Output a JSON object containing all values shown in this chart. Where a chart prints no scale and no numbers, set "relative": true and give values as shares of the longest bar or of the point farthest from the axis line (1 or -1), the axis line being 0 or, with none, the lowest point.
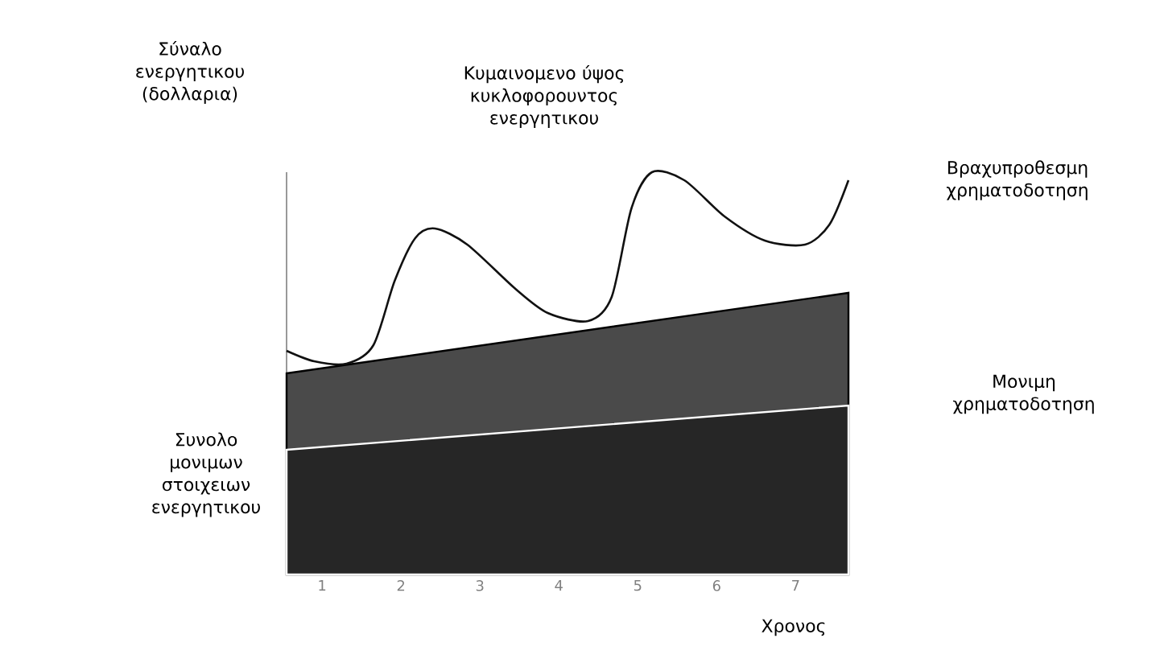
{
  "chart_data": {
    "type": "area",
    "relative": true,
    "ylabel": "Σύναλο ενεργητικου (δολλαρια)",
    "xlabel": "Χρονος",
    "xlim": [
      0.55,
      7.67
    ],
    "xticks": [
      1,
      2,
      3,
      4,
      5,
      6,
      7
    ],
    "annotations": [
      "Βραχυπροθεσμη χρηματοδοτηση",
      "Μονιμη χρηματοδοτηση"
    ],
    "series": [
      {
        "color": "#4a4a4a",
        "x": [
          0.55,
          7.67
        ],
        "values": [
          0.5,
          0.7
        ]
      },
      {
        "name": "Συνολο μονιμων στοιχειων ενεργητικου",
        "color": "#262626",
        "x": [
          0.55,
          7.67
        ],
        "values": [
          0.31,
          0.42
        ]
      },
      {
        "type": "line",
        "name": "Κυμαινομενο ύψος κυκλοφορουντος ενεργητικου",
        "color": "#111111",
        "x": [
          0.55,
          0.9,
          1.31,
          1.65,
          1.92,
          2.18,
          2.43,
          2.84,
          3.45,
          3.86,
          4.37,
          4.67,
          4.92,
          5.18,
          5.59,
          6.1,
          6.61,
          7.12,
          7.43,
          7.67
        ],
        "values": [
          0.556,
          0.53,
          0.524,
          0.57,
          0.73,
          0.836,
          0.86,
          0.82,
          0.71,
          0.65,
          0.63,
          0.69,
          0.91,
          1.0,
          0.98,
          0.89,
          0.83,
          0.82,
          0.87,
          0.98
        ]
      }
    ]
  }
}
